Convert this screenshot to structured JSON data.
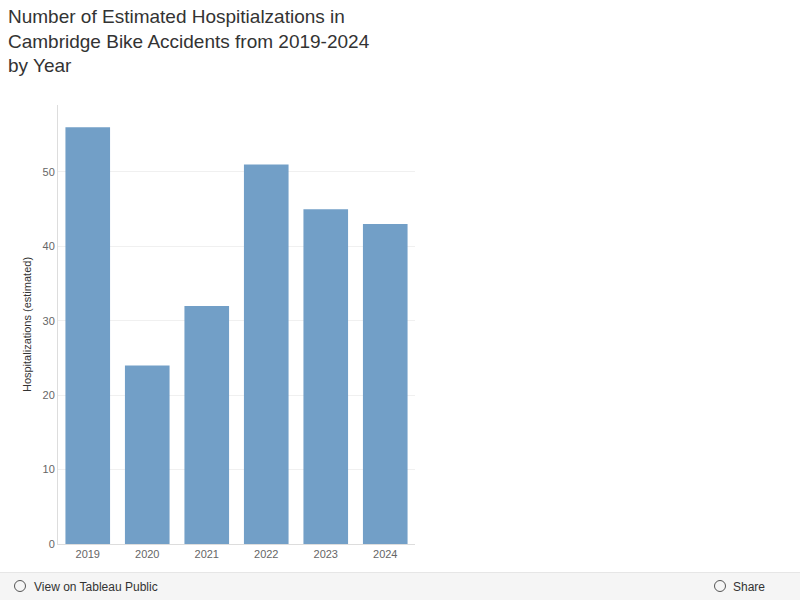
{
  "chart_data": {
    "type": "bar",
    "title": "Number of Estimated Hospitialzations in Cambridge Bike Accidents from 2019-2024 by Year",
    "y_label": "Hospitalizations (estimated)",
    "categories": [
      "2019",
      "2020",
      "2021",
      "2022",
      "2023",
      "2024"
    ],
    "values": [
      56,
      24,
      32,
      51,
      45,
      43
    ],
    "color": "#729fc7",
    "ylim": [
      0,
      59
    ],
    "yticks": [
      0,
      10,
      20,
      30,
      40,
      50
    ],
    "grid": true
  },
  "toolbar": {
    "left": "View on Tableau Public",
    "right": "Share"
  }
}
